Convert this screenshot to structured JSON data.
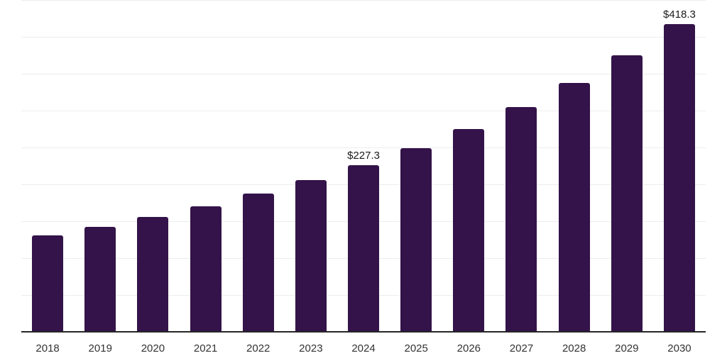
{
  "chart_data": {
    "type": "bar",
    "title": "",
    "xlabel": "",
    "ylabel": "",
    "categories": [
      "2018",
      "2019",
      "2020",
      "2021",
      "2022",
      "2023",
      "2024",
      "2025",
      "2026",
      "2027",
      "2028",
      "2029",
      "2030"
    ],
    "values": [
      132.0,
      143.4,
      156.6,
      171.2,
      188.0,
      206.4,
      227.3,
      249.7,
      276.2,
      306.0,
      338.1,
      375.6,
      418.3
    ],
    "data_labels": [
      {
        "category": "2024",
        "text": "$227.3"
      },
      {
        "category": "2030",
        "text": "$418.3"
      }
    ],
    "ylim": [
      0,
      450
    ],
    "gridline_step": 50,
    "grid": true,
    "legend": false,
    "y_axis_ticks_visible": false,
    "colors": {
      "bar": "#331349",
      "gridline": "#ededed",
      "axis_line": "#262626",
      "tick_label": "#333333",
      "value_label": "#1a1a1a",
      "background": "#ffffff"
    }
  }
}
